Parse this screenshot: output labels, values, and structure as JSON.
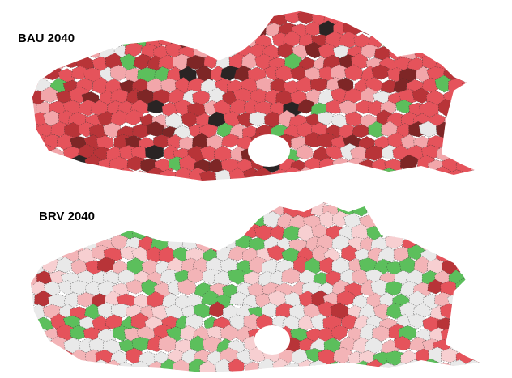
{
  "maps": [
    {
      "label": "BAU 2040"
    },
    {
      "label": "BRV 2040"
    }
  ]
}
